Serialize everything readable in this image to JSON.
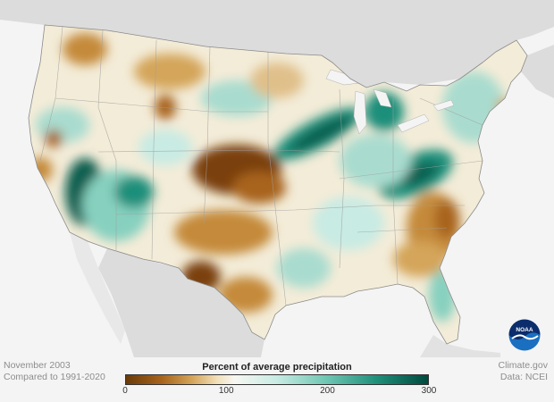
{
  "map": {
    "title": "Percent of average precipitation",
    "period": "November 2003",
    "baseline": "Compared to 1991-2020",
    "source_credit": "Climate.gov",
    "data_credit": "Data: NCEI",
    "legend": {
      "ticks": [
        "0",
        "100",
        "200",
        "300"
      ],
      "min": 0,
      "max": 300,
      "colors": [
        "#6b3a08",
        "#a8641c",
        "#d4a55a",
        "#f1dfb8",
        "#f7f7f2",
        "#c8ebe3",
        "#70c7b4",
        "#1f8f7a",
        "#014a3e"
      ]
    },
    "logo": "noaa-logo",
    "colors": {
      "land": "#f7f5ee",
      "outside_land": "#dcdcdc",
      "ocean": "#f4f4f4",
      "dry_strong": "#7a3f09",
      "dry": "#c58a3a",
      "normal": "#f3ecd8",
      "wet": "#87d0bf",
      "wet_strong": "#0a5e4f"
    }
  }
}
